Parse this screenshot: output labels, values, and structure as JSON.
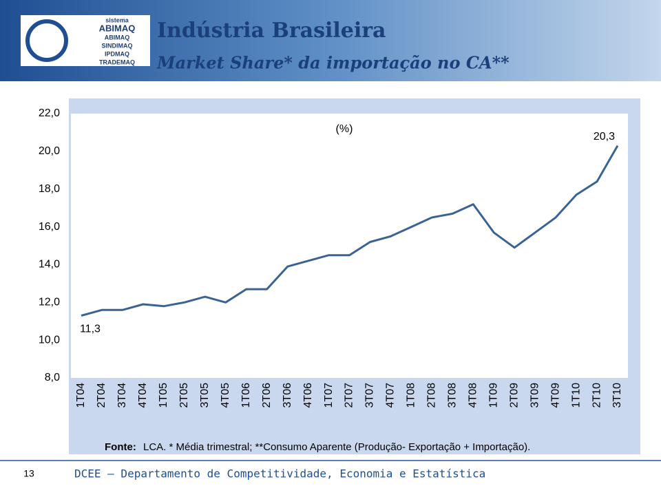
{
  "header": {
    "logo": {
      "top": "sistema",
      "brand": "ABIMAQ",
      "items": [
        "ABIMAQ",
        "SINDIMAQ",
        "IPDMAQ",
        "TRADEMAQ"
      ]
    },
    "title": "Indústria Brasileira",
    "subtitle": "Market Share* da importação no CA**"
  },
  "chart_data": {
    "type": "line",
    "unit_label": "(%)",
    "categories": [
      "1T04",
      "2T04",
      "3T04",
      "4T04",
      "1T05",
      "2T05",
      "3T05",
      "4T05",
      "1T06",
      "2T06",
      "3T06",
      "4T06",
      "1T07",
      "2T07",
      "3T07",
      "4T07",
      "1T08",
      "2T08",
      "3T08",
      "4T08",
      "1T09",
      "2T09",
      "3T09",
      "4T09",
      "1T10",
      "2T10",
      "3T10"
    ],
    "values": [
      11.3,
      11.6,
      11.6,
      11.9,
      11.8,
      12.0,
      12.3,
      12.0,
      12.7,
      12.7,
      13.9,
      14.2,
      14.5,
      14.5,
      15.2,
      15.5,
      16.0,
      16.5,
      16.7,
      17.2,
      15.7,
      14.9,
      15.7,
      16.5,
      17.7,
      18.4,
      20.3
    ],
    "value_labels": [
      "11,3",
      null,
      null,
      null,
      null,
      null,
      null,
      null,
      null,
      null,
      null,
      null,
      null,
      null,
      null,
      null,
      null,
      null,
      null,
      null,
      null,
      null,
      null,
      null,
      null,
      null,
      "20,3"
    ],
    "color": "#3a6393",
    "ylim": [
      8,
      22
    ],
    "yticks": [
      {
        "value": 8,
        "label": "8,0"
      },
      {
        "value": 10,
        "label": "10,0"
      },
      {
        "value": 12,
        "label": "12,0"
      },
      {
        "value": 14,
        "label": "14,0"
      },
      {
        "value": 16,
        "label": "16,0"
      },
      {
        "value": 18,
        "label": "18,0"
      },
      {
        "value": 20,
        "label": "20,0"
      },
      {
        "value": 22,
        "label": "22,0"
      }
    ],
    "grid": false,
    "source_label": "Fonte:",
    "source_text": "LCA. * Média trimestral; **Consumo Aparente (Produção- Exportação + Importação)."
  },
  "footer": {
    "page": "13",
    "text": "DCEE – Departamento de Competitividade, Economia e Estatística"
  }
}
